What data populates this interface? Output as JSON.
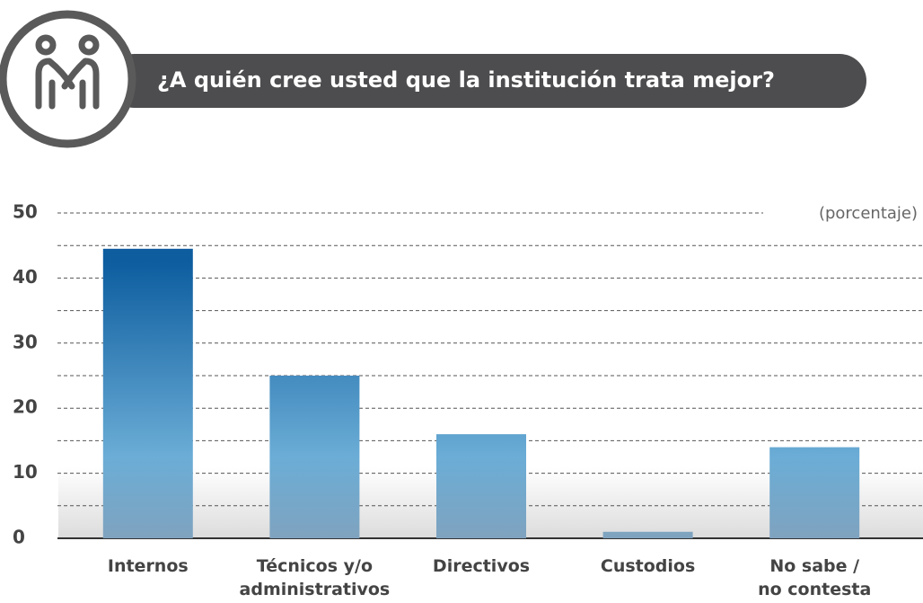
{
  "chart_data": {
    "type": "bar",
    "title": "¿A quién cree usted que la institución trata mejor?",
    "annotation": "(porcentaje)",
    "categories": [
      "Internos",
      "Técnicos y/o\nadministrativos",
      "Directivos",
      "Custodios",
      "No sabe /\nno contesta"
    ],
    "values": [
      44.5,
      25,
      16,
      1,
      14
    ],
    "color": "#2f7fbf",
    "gradient": [
      "#0d5d9f",
      "#6badd6",
      "#7fa3bf"
    ],
    "ylim": [
      0,
      50
    ],
    "yticks": [
      0,
      10,
      20,
      30,
      40,
      50
    ],
    "minor_yticks": [
      5,
      15,
      25,
      35,
      45
    ],
    "grid": true
  }
}
